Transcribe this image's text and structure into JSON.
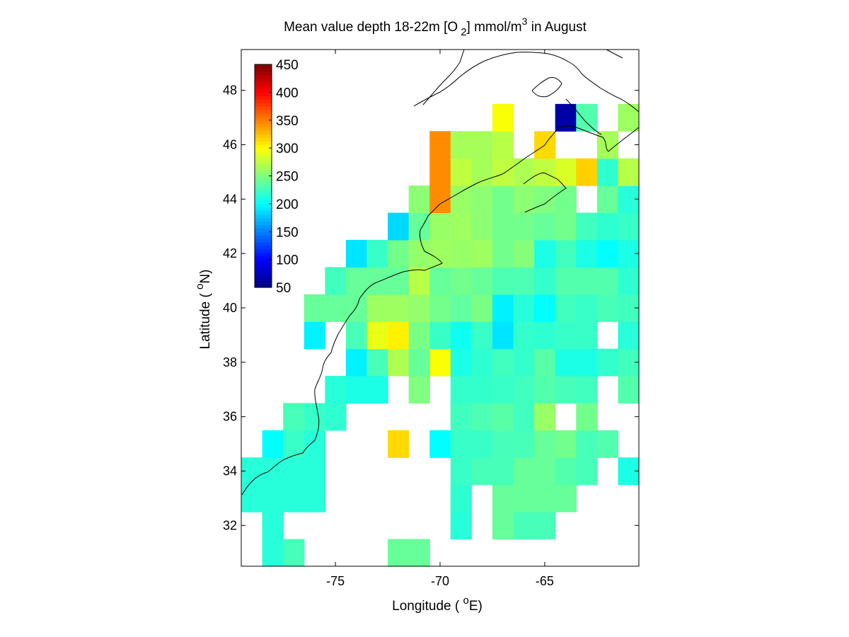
{
  "chart_data": {
    "type": "heatmap",
    "title": {
      "prefix": "Mean value depth 18-22m [O",
      "subscript": "2",
      "middle": "] mmol/m",
      "superscript": "3",
      "suffix": " in August"
    },
    "xlabel": {
      "text": "Longitude ( ",
      "degree": "o",
      "unit": "E)"
    },
    "ylabel": {
      "text": "Latitude ( ",
      "degree": "o",
      "unit": "N)"
    },
    "xlim": [
      -79.5,
      -60.5
    ],
    "ylim": [
      30.5,
      49.5
    ],
    "x_ticks": [
      {
        "value": -75,
        "label": "-75"
      },
      {
        "value": -70,
        "label": "-70"
      },
      {
        "value": -65,
        "label": "-65"
      }
    ],
    "y_ticks": [
      {
        "value": 32,
        "label": "32"
      },
      {
        "value": 34,
        "label": "34"
      },
      {
        "value": 36,
        "label": "36"
      },
      {
        "value": 38,
        "label": "38"
      },
      {
        "value": 40,
        "label": "40"
      },
      {
        "value": 42,
        "label": "42"
      },
      {
        "value": 44,
        "label": "44"
      },
      {
        "value": 46,
        "label": "46"
      },
      {
        "value": 48,
        "label": "48"
      }
    ],
    "colorbar": {
      "colormap": "jet",
      "range": [
        50,
        450
      ],
      "ticks": [
        "50",
        "100",
        "150",
        "200",
        "250",
        "300",
        "350",
        "400",
        "450"
      ]
    },
    "cell_size_deg": 1.0,
    "grid_origin": {
      "lon": -79.5,
      "lat": 30.5
    },
    "grid_values": [
      [
        null,
        215,
        228,
        null,
        null,
        null,
        null,
        240,
        240,
        null,
        null,
        null,
        null,
        null,
        null,
        null,
        null,
        null,
        null
      ],
      [
        null,
        215,
        null,
        null,
        null,
        null,
        null,
        null,
        null,
        null,
        215,
        null,
        240,
        228,
        228,
        null,
        null,
        null,
        null
      ],
      [
        215,
        215,
        215,
        215,
        null,
        null,
        null,
        null,
        null,
        null,
        218,
        null,
        240,
        240,
        240,
        240,
        null,
        null,
        null
      ],
      [
        215,
        215,
        215,
        215,
        null,
        null,
        null,
        null,
        null,
        null,
        222,
        228,
        228,
        240,
        240,
        232,
        228,
        null,
        210
      ],
      [
        null,
        200,
        222,
        215,
        null,
        null,
        null,
        315,
        null,
        200,
        222,
        222,
        228,
        228,
        240,
        245,
        228,
        232,
        null
      ],
      [
        null,
        null,
        228,
        222,
        218,
        null,
        null,
        null,
        null,
        null,
        225,
        230,
        235,
        225,
        260,
        null,
        245,
        null,
        null
      ],
      [
        null,
        null,
        null,
        null,
        215,
        210,
        210,
        null,
        250,
        null,
        220,
        220,
        222,
        225,
        232,
        228,
        225,
        null,
        232
      ],
      [
        null,
        null,
        null,
        null,
        null,
        195,
        228,
        268,
        240,
        298,
        210,
        218,
        225,
        220,
        235,
        210,
        210,
        220,
        225
      ],
      [
        null,
        null,
        null,
        195,
        null,
        228,
        292,
        305,
        248,
        222,
        205,
        222,
        190,
        220,
        218,
        222,
        222,
        null,
        215
      ],
      [
        null,
        null,
        null,
        240,
        240,
        240,
        262,
        262,
        258,
        245,
        238,
        248,
        195,
        215,
        200,
        225,
        222,
        228,
        225
      ],
      [
        null,
        null,
        null,
        null,
        225,
        240,
        240,
        240,
        272,
        240,
        245,
        240,
        230,
        230,
        220,
        232,
        232,
        232,
        218
      ],
      [
        null,
        null,
        null,
        null,
        null,
        190,
        222,
        245,
        258,
        262,
        260,
        262,
        245,
        252,
        210,
        225,
        210,
        200,
        210
      ],
      [
        null,
        null,
        null,
        null,
        null,
        null,
        null,
        185,
        240,
        260,
        262,
        255,
        245,
        245,
        240,
        245,
        225,
        218,
        222
      ],
      [
        null,
        null,
        null,
        null,
        null,
        null,
        null,
        null,
        255,
        345,
        260,
        255,
        245,
        255,
        250,
        245,
        null,
        240,
        215
      ],
      [
        null,
        null,
        null,
        null,
        null,
        null,
        null,
        null,
        null,
        345,
        275,
        265,
        275,
        268,
        275,
        285,
        318,
        218,
        272
      ],
      [
        null,
        null,
        null,
        null,
        null,
        null,
        null,
        null,
        null,
        345,
        265,
        265,
        272,
        null,
        315,
        null,
        null,
        265,
        null
      ],
      [
        null,
        null,
        null,
        null,
        null,
        null,
        null,
        null,
        null,
        null,
        null,
        null,
        298,
        null,
        null,
        65,
        232,
        null,
        262
      ],
      [
        null,
        null,
        null,
        null,
        null,
        null,
        null,
        null,
        null,
        null,
        null,
        null,
        null,
        null,
        null,
        null,
        null,
        null,
        null
      ],
      [
        null,
        null,
        null,
        null,
        null,
        null,
        null,
        null,
        null,
        null,
        null,
        null,
        null,
        null,
        null,
        null,
        null,
        null,
        null
      ],
      [
        null,
        null,
        null,
        null,
        null,
        null,
        null,
        null,
        null,
        null,
        null,
        null,
        null,
        null,
        null,
        null,
        null,
        null,
        null
      ]
    ]
  }
}
